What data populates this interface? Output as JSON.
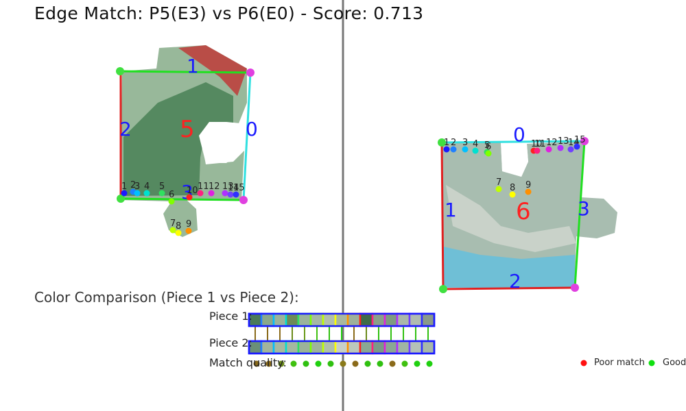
{
  "title": "Edge Match: P5(E3) vs P6(E0) - Score: 0.713",
  "comparison": {
    "title": "Color Comparison (Piece 1 vs Piece 2):",
    "piece1_label": "Piece 1:",
    "piece2_label": "Piece 2:",
    "match_label": "Match quality:",
    "piece1_colors": [
      "#4b7a58",
      "#8aa88a",
      "#9cb39a",
      "#6e8a58",
      "#9bb39c",
      "#a6b8a4",
      "#b3c0ac",
      "#a8b8a0",
      "#9eb19a",
      "#3f6b48",
      "#8aa08a",
      "#7e9c80",
      "#aab8aa",
      "#b0bcb0",
      "#8a9a8a"
    ],
    "piece2_colors": [
      "#6a8f78",
      "#a2b59c",
      "#a8b9a0",
      "#a4b8a0",
      "#9cb29a",
      "#9fb49c",
      "#b0c0ac",
      "#c8d0c8",
      "#bcc8bc",
      "#8aa894",
      "#7a9a88",
      "#8aa894",
      "#a0b4a4",
      "#b4c2b8",
      "#a8b8a8"
    ],
    "slot_colors": [
      "#1a1aff",
      "#2080ff",
      "#00c0ff",
      "#00e0d0",
      "#30e060",
      "#80ff00",
      "#c0ff00",
      "#ffff00",
      "#ff9000",
      "#ff2020",
      "#ff2080",
      "#e020e0",
      "#b030ff",
      "#7040ff",
      "#3030ff"
    ],
    "link_colors": [
      "#8a6a1a",
      "#8a6a1a",
      "#8a6a1a",
      "#6a8a1a",
      "#6a9a1a",
      "#40c010",
      "#30c010",
      "#20d010",
      "#8a6a1a",
      "#6a8a1a",
      "#30c010",
      "#30c010",
      "#30c010",
      "#30c010",
      "#30c010"
    ],
    "quality_colors": [
      "#8a6a1a",
      "#8a6a1a",
      "#6a8a1a",
      "#40c010",
      "#30c010",
      "#20d010",
      "#30c010",
      "#8a7a1a",
      "#8a6a1a",
      "#30c010",
      "#30c010",
      "#8a6a1a",
      "#40c010",
      "#20d010",
      "#20d010"
    ]
  },
  "legend": {
    "poor_label": "Poor match",
    "good_label": "Good",
    "poor_color": "#ff1010",
    "good_color": "#10e010"
  },
  "piece1": {
    "id_label": "5",
    "edge_labels": [
      "0",
      "1",
      "2",
      "3"
    ],
    "point_labels": [
      "1",
      "2",
      "3",
      "4",
      "5",
      "6",
      "7",
      "8",
      "9",
      "10",
      "11",
      "12",
      "13",
      "14",
      "15"
    ]
  },
  "piece2": {
    "id_label": "6",
    "edge_labels": [
      "0",
      "1",
      "2",
      "3"
    ],
    "point_labels": [
      "1",
      "2",
      "3",
      "4",
      "5",
      "6",
      "7",
      "8",
      "9",
      "10",
      "11",
      "12",
      "13",
      "14",
      "15"
    ]
  }
}
